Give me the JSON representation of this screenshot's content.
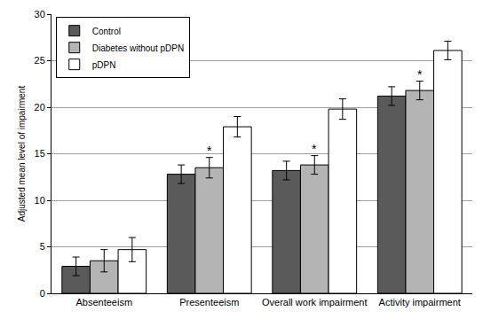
{
  "chart_data": {
    "type": "bar",
    "categories": [
      "Absenteeism",
      "Presenteeism",
      "Overall work impairment",
      "Activity impairment"
    ],
    "series": [
      {
        "name": "Control",
        "color": "#5a5a5a",
        "values": [
          2.9,
          12.8,
          13.2,
          21.2
        ],
        "errors": [
          1.0,
          1.0,
          1.0,
          1.0
        ]
      },
      {
        "name": "Diabetes without pDPN",
        "color": "#b4b4b4",
        "values": [
          3.5,
          13.5,
          13.8,
          21.8
        ],
        "errors": [
          1.2,
          1.1,
          1.0,
          1.0
        ]
      },
      {
        "name": "pDPN",
        "color": "#ffffff",
        "values": [
          4.7,
          17.9,
          19.8,
          26.1
        ],
        "errors": [
          1.3,
          1.1,
          1.1,
          1.0
        ]
      }
    ],
    "y_label": "Adjusted mean level of impairment",
    "ylim": [
      0,
      30
    ],
    "yticks": [
      0,
      5,
      10,
      15,
      20,
      25,
      30
    ],
    "grid": true,
    "legend": "top-left",
    "annotations": [
      {
        "text": "*",
        "category": "Presenteeism",
        "series": "Diabetes without pDPN"
      },
      {
        "text": "*",
        "category": "Overall work impairment",
        "series": "Diabetes without pDPN"
      },
      {
        "text": "*",
        "category": "Activity impairment",
        "series": "Diabetes without pDPN"
      }
    ]
  }
}
